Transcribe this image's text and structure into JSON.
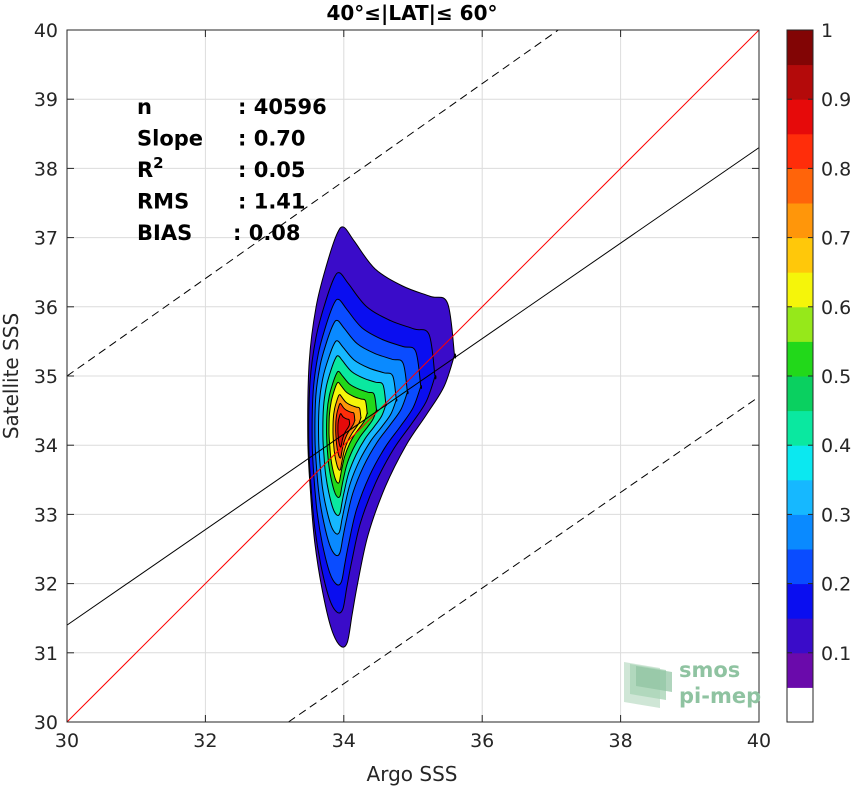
{
  "chart_data": {
    "type": "contour",
    "title": "40°≤|LAT|≤ 60°",
    "xlabel": "Argo SSS",
    "ylabel": "Satellite SSS",
    "xlim": [
      30,
      40
    ],
    "ylim": [
      30,
      40
    ],
    "xticks": [
      "30",
      "32",
      "34",
      "36",
      "38",
      "40"
    ],
    "yticks": [
      "30",
      "31",
      "32",
      "33",
      "34",
      "35",
      "36",
      "37",
      "38",
      "39",
      "40"
    ],
    "grid": true,
    "stats": [
      {
        "label": "n",
        "value": ": 40596"
      },
      {
        "label": "Slope",
        "value": ": 0.70"
      },
      {
        "label": "R",
        "sup": "2",
        "value": ": 0.05"
      },
      {
        "label": "RMS",
        "value": ": 1.41"
      },
      {
        "label": "BIAS",
        "value": ": 0.08"
      }
    ],
    "lines": {
      "one_to_one": {
        "color": "#ff0000",
        "points": [
          [
            30,
            30
          ],
          [
            40,
            40
          ]
        ]
      },
      "fit": {
        "color": "#000000",
        "points": [
          [
            30,
            31.4
          ],
          [
            40,
            38.3
          ]
        ]
      },
      "upper_bound": {
        "color": "#000000",
        "dash": true,
        "points": [
          [
            30,
            35.0
          ],
          [
            37.1,
            40
          ]
        ]
      },
      "lower_bound": {
        "color": "#000000",
        "dash": true,
        "points": [
          [
            33.2,
            30
          ],
          [
            40,
            34.7
          ]
        ]
      }
    },
    "colorbar": {
      "ticks": [
        "0.1",
        "0.2",
        "0.3",
        "0.4",
        "0.5",
        "0.6",
        "0.7",
        "0.8",
        "0.9",
        "1"
      ],
      "colors": [
        "#ffffff",
        "#6a0aab",
        "#3a0cc9",
        "#0a0ef0",
        "#0a4cff",
        "#0a8aff",
        "#16b8ff",
        "#0be8f0",
        "#0ae8a0",
        "#0ad060",
        "#22d81a",
        "#96e81a",
        "#f5f50a",
        "#ffc80a",
        "#ff960a",
        "#ff640a",
        "#ff2d0a",
        "#e60a0a",
        "#b40a0a",
        "#820505"
      ]
    },
    "contours": [
      {
        "level": 1,
        "color": "#3a0cc9",
        "cx": 34.3,
        "cy": 34.2,
        "upper": [
          [
            33.5,
            35.2
          ],
          [
            33.6,
            36.0
          ],
          [
            33.75,
            36.6
          ],
          [
            33.9,
            37.05
          ],
          [
            34.0,
            37.15
          ],
          [
            34.15,
            36.95
          ],
          [
            34.45,
            36.55
          ],
          [
            34.85,
            36.3
          ],
          [
            35.25,
            36.15
          ],
          [
            35.5,
            36.05
          ],
          [
            35.6,
            35.3
          ]
        ],
        "lower": [
          [
            35.6,
            35.3
          ],
          [
            35.45,
            34.85
          ],
          [
            35.2,
            34.45
          ],
          [
            34.9,
            34.0
          ],
          [
            34.6,
            33.4
          ],
          [
            34.35,
            32.7
          ],
          [
            34.2,
            32.0
          ],
          [
            34.12,
            31.55
          ],
          [
            34.05,
            31.15
          ],
          [
            33.95,
            31.1
          ],
          [
            33.82,
            31.35
          ],
          [
            33.68,
            31.95
          ],
          [
            33.58,
            32.6
          ],
          [
            33.52,
            33.3
          ],
          [
            33.48,
            34.1
          ]
        ]
      },
      {
        "level": 2,
        "color": "#0a0ef0",
        "cx": 34.2,
        "cy": 34.1,
        "sx": 0.86,
        "sy": 0.81
      },
      {
        "level": 3,
        "color": "#0a4cff",
        "cx": 34.15,
        "cy": 34.1,
        "sx": 0.74,
        "sy": 0.68
      },
      {
        "level": 4,
        "color": "#0a8aff",
        "cx": 34.1,
        "cy": 34.15,
        "sx": 0.63,
        "sy": 0.56
      },
      {
        "level": 5,
        "color": "#16b8ff",
        "cx": 34.07,
        "cy": 34.15,
        "sx": 0.53,
        "sy": 0.46
      },
      {
        "level": 6,
        "color": "#0ae8a0",
        "cx": 34.05,
        "cy": 34.17,
        "sx": 0.43,
        "sy": 0.38
      },
      {
        "level": 7,
        "color": "#22d81a",
        "cx": 34.03,
        "cy": 34.18,
        "sx": 0.34,
        "sy": 0.3
      },
      {
        "level": 8,
        "color": "#f5f50a",
        "cx": 34.0,
        "cy": 34.2,
        "sx": 0.26,
        "sy": 0.24
      },
      {
        "level": 9,
        "color": "#ff960a",
        "cx": 34.0,
        "cy": 34.2,
        "sx": 0.19,
        "sy": 0.18
      },
      {
        "level": 10,
        "color": "#ff2d0a",
        "cx": 33.99,
        "cy": 34.22,
        "sx": 0.13,
        "sy": 0.13
      },
      {
        "level": 11,
        "color": "#e60a0a",
        "cx": 33.98,
        "cy": 34.22,
        "sx": 0.08,
        "sy": 0.08
      }
    ]
  },
  "logo": {
    "line1": "smos",
    "line2": "pi-mep"
  }
}
